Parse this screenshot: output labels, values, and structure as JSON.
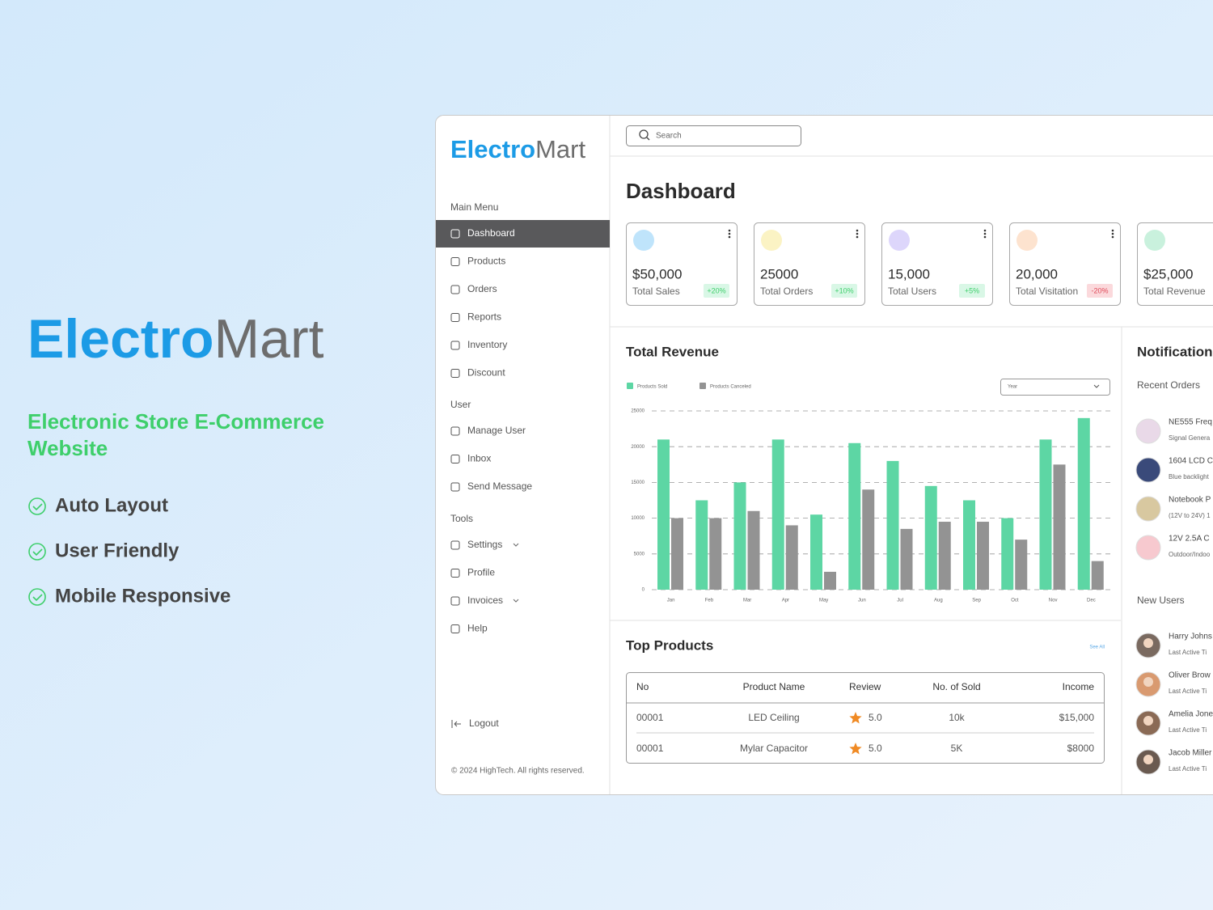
{
  "hero": {
    "logo_a": "Electro",
    "logo_b": "Mart",
    "tagline_lines": [
      "Electronic Store E-Commerce",
      "Website"
    ],
    "features": [
      "Auto Layout",
      "User Friendly",
      "Mobile Responsive"
    ]
  },
  "sidebar": {
    "logo_a": "Electro",
    "logo_b": "Mart",
    "menu": [
      {
        "heading": "Main Menu",
        "items": [
          "Dashboard",
          "Products",
          "Orders",
          "Reports",
          "Inventory",
          "Discount"
        ]
      },
      {
        "heading": "User",
        "items": [
          "Manage User",
          "Inbox",
          "Send Message"
        ]
      },
      {
        "heading": "Tools",
        "items": [
          "Settings",
          "Profile",
          "Invoices",
          "Help"
        ]
      }
    ],
    "logout": "Logout",
    "footer": "© 2024 HighTech. All rights reserved."
  },
  "search_placeholder": "Search",
  "page_title": "Dashboard",
  "stats": [
    {
      "value": "$50,000",
      "label": "Total Sales",
      "change": "+20%"
    },
    {
      "value": "25000",
      "label": "Total Orders",
      "change": "+10%"
    },
    {
      "value": "15,000",
      "label": "Total Users",
      "change": "+5%"
    },
    {
      "value": "20,000",
      "label": "Total Visitation",
      "change": "-20%"
    },
    {
      "value": "$25,000",
      "label": "Total Revenue"
    }
  ],
  "revenue_filter": "Year",
  "chart_data": {
    "type": "bar",
    "title": "Total Revenue",
    "categories": [
      "Jan",
      "Feb",
      "Mar",
      "Apr",
      "May",
      "Jun",
      "Jul",
      "Aug",
      "Sep",
      "Oct",
      "Nov",
      "Dec"
    ],
    "series": [
      {
        "name": "Products Sold",
        "color": "#5dd6a4",
        "values": [
          21000,
          12500,
          15000,
          21000,
          10500,
          20500,
          18000,
          14500,
          12500,
          10000,
          21000,
          24000
        ]
      },
      {
        "name": "Products Canceled",
        "color": "#939393",
        "values": [
          10000,
          10000,
          11000,
          9000,
          2500,
          14000,
          8500,
          9500,
          9500,
          7000,
          17500,
          4000
        ]
      }
    ],
    "ylim": [
      0,
      25000
    ],
    "yticks": [
      0,
      5000,
      10000,
      15000,
      20000,
      25000
    ],
    "grid": true
  },
  "top_products": {
    "title": "Top Products",
    "see_all": "See All",
    "columns": [
      "No",
      "Product Name",
      "Review",
      "No. of Sold",
      "Income"
    ],
    "rows": [
      [
        "00001",
        "LED Ceiling",
        "5.0",
        "10k",
        "$15,000"
      ],
      [
        "00001",
        "Mylar Capacitor",
        "5.0",
        "5K",
        "$8000"
      ]
    ]
  },
  "notifications": {
    "title": "Notification",
    "recent_orders_title": "Recent Orders",
    "orders": [
      {
        "name": "NE555 Freq",
        "desc": "Signal Genera"
      },
      {
        "name": "1604 LCD C",
        "desc": "Blue backlight"
      },
      {
        "name": "Notebook P",
        "desc": "(12V to 24V) 1"
      },
      {
        "name": "12V 2.5A C",
        "desc": "Outdoor/Indoo"
      }
    ],
    "new_users_title": "New Users",
    "users": [
      {
        "name": "Harry Johns",
        "meta": "Last Active Ti"
      },
      {
        "name": "Oliver Brow",
        "meta": "Last Active Ti"
      },
      {
        "name": "Amelia Jone",
        "meta": "Last Active Ti"
      },
      {
        "name": "Jacob Miller",
        "meta": "Last Active Ti"
      }
    ]
  }
}
